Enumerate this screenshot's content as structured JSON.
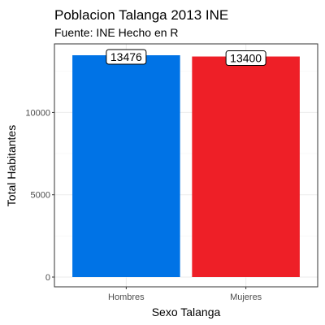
{
  "chart_data": {
    "type": "bar",
    "title": "Poblacion Talanga 2013 INE",
    "subtitle": "Fuente: INE Hecho en R",
    "xlabel": "Sexo Talanga",
    "ylabel": "Total Habitantes",
    "categories": [
      "Hombres",
      "Mujeres"
    ],
    "values": [
      13476,
      13400
    ],
    "colors": [
      "#0073E6",
      "#EE1F27"
    ],
    "ylim": [
      0,
      13476
    ],
    "yticks": [
      0,
      5000,
      10000
    ],
    "grid": true,
    "legend": "none"
  }
}
